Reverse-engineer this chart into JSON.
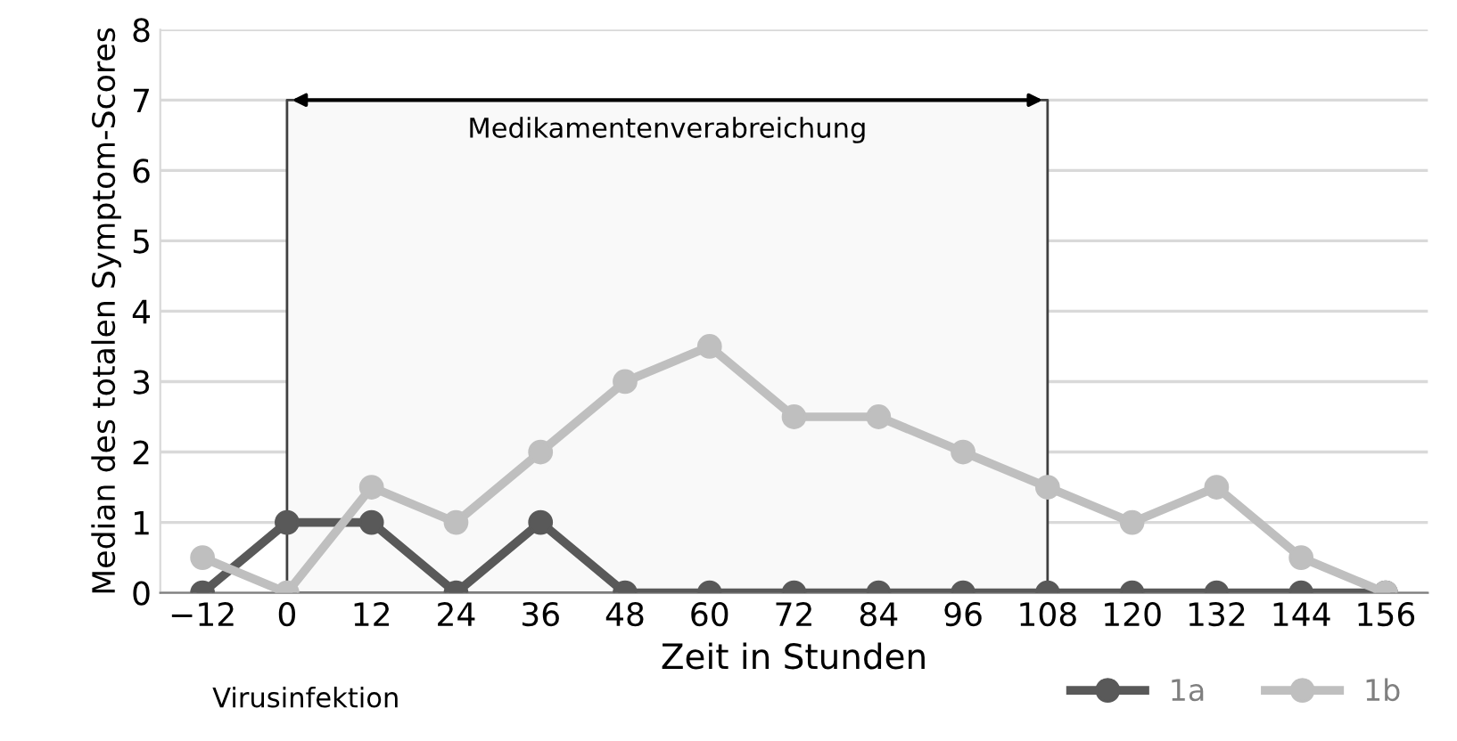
{
  "chart_data": {
    "type": "line",
    "xlabel": "Zeit in Stunden",
    "ylabel": "Median des totalen Symptom-Scores",
    "categories": [
      "−12",
      "0",
      "12",
      "24",
      "36",
      "48",
      "60",
      "72",
      "84",
      "96",
      "108",
      "120",
      "132",
      "144",
      "156"
    ],
    "series": [
      {
        "name": "1a",
        "color": "#595959",
        "values": [
          0,
          1,
          1,
          0,
          1,
          0,
          0,
          0,
          0,
          0,
          0,
          0,
          0,
          0,
          0
        ]
      },
      {
        "name": "1b",
        "color": "#bfbfbf",
        "values": [
          0.5,
          0,
          1.5,
          1,
          2,
          3,
          3.5,
          2.5,
          2.5,
          2,
          1.5,
          1,
          1.5,
          0.5,
          0
        ]
      }
    ],
    "ylim": [
      0,
      8
    ],
    "yticks": [
      0,
      1,
      2,
      3,
      4,
      5,
      6,
      7,
      8
    ],
    "bands": [
      {
        "axis": "x",
        "from": "0",
        "to": "108",
        "label": "Medikamentenverabreichung",
        "color": "#f9f9f9"
      }
    ],
    "annotations": [
      "Virusinfektion"
    ],
    "grid": "y",
    "legend": "bottom right",
    "marker": "circle",
    "line_style": "solid"
  }
}
